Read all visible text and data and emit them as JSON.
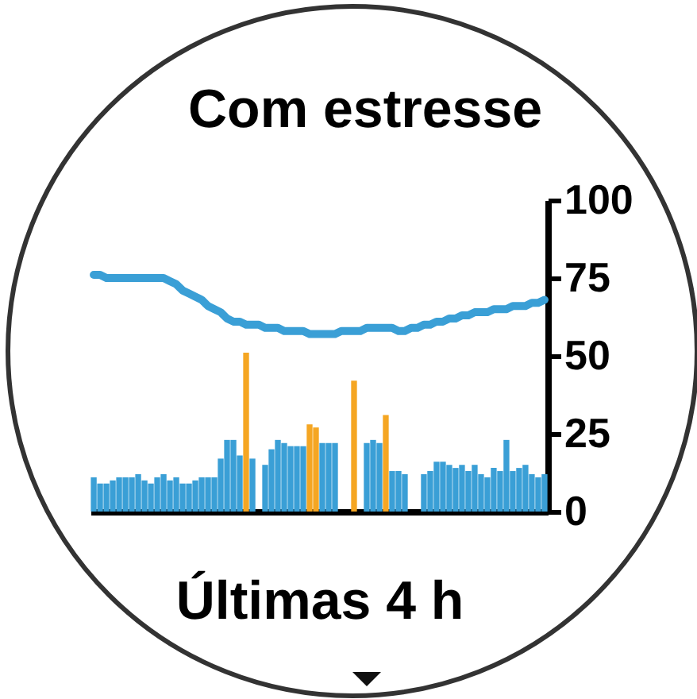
{
  "chart_data": {
    "type": "bar",
    "title": "Com estresse",
    "xlabel": "Últimas 4 h",
    "categories": [
      null,
      null,
      null,
      null,
      null,
      null,
      null,
      null,
      null,
      null,
      null,
      null,
      null,
      null,
      null,
      null,
      null,
      null,
      null,
      null,
      null,
      null,
      null,
      null,
      null,
      null,
      null,
      null,
      null,
      null,
      null,
      null,
      null,
      null,
      null,
      null,
      null,
      null,
      null,
      null,
      null,
      null,
      null,
      null,
      null,
      null,
      null,
      null,
      null,
      null,
      null,
      null,
      null,
      null,
      null,
      null,
      null,
      null,
      null,
      null,
      null,
      null,
      null,
      null,
      null,
      null,
      null,
      null,
      null,
      null,
      null,
      null
    ],
    "series": [
      {
        "color": "#3a9fd6",
        "values": [
          11,
          9,
          9,
          10,
          11,
          11,
          11,
          12,
          10,
          9,
          11,
          12,
          10,
          11,
          9,
          9,
          10,
          11,
          11,
          11,
          17,
          23,
          23,
          18,
          null,
          17,
          null,
          15,
          20,
          23,
          22,
          21,
          21,
          21,
          null,
          null,
          22,
          22,
          22,
          null,
          null,
          null,
          null,
          22,
          23,
          22,
          null,
          13,
          13,
          12,
          null,
          null,
          12,
          13,
          16,
          16,
          15,
          14,
          15,
          13,
          15,
          12,
          11,
          14,
          13,
          23,
          13,
          14,
          15,
          12,
          11,
          12
        ]
      },
      {
        "color": "#f5a623",
        "values": [
          null,
          null,
          null,
          null,
          null,
          null,
          null,
          null,
          null,
          null,
          null,
          null,
          null,
          null,
          null,
          null,
          null,
          null,
          null,
          null,
          null,
          null,
          null,
          null,
          51,
          null,
          null,
          null,
          null,
          null,
          null,
          null,
          null,
          null,
          28,
          27,
          null,
          null,
          null,
          null,
          null,
          42,
          null,
          null,
          null,
          null,
          31,
          null,
          null,
          null,
          null,
          null,
          null,
          null,
          null,
          null,
          null,
          null,
          null,
          null,
          null,
          null,
          null,
          null,
          null,
          null,
          null,
          null,
          null,
          null,
          null,
          null
        ]
      },
      {
        "type": "line",
        "color": "#3a9fd6",
        "values": [
          76,
          76,
          75,
          75,
          75,
          75,
          75,
          75,
          75,
          75,
          75,
          75,
          74,
          73,
          71,
          70,
          69,
          68,
          66,
          65,
          64,
          62,
          61,
          61,
          60,
          60,
          60,
          59,
          59,
          59,
          58,
          58,
          58,
          58,
          57,
          57,
          57,
          57,
          57,
          58,
          58,
          58,
          58,
          59,
          59,
          59,
          59,
          59,
          58,
          58,
          59,
          59,
          60,
          60,
          61,
          61,
          62,
          62,
          63,
          63,
          64,
          64,
          64,
          65,
          65,
          65,
          66,
          66,
          66,
          67,
          67,
          68
        ]
      }
    ],
    "ylim": [
      0,
      100
    ],
    "yticks": [
      0,
      25,
      50,
      75,
      100
    ],
    "grid": false,
    "tick_labels": "y"
  }
}
